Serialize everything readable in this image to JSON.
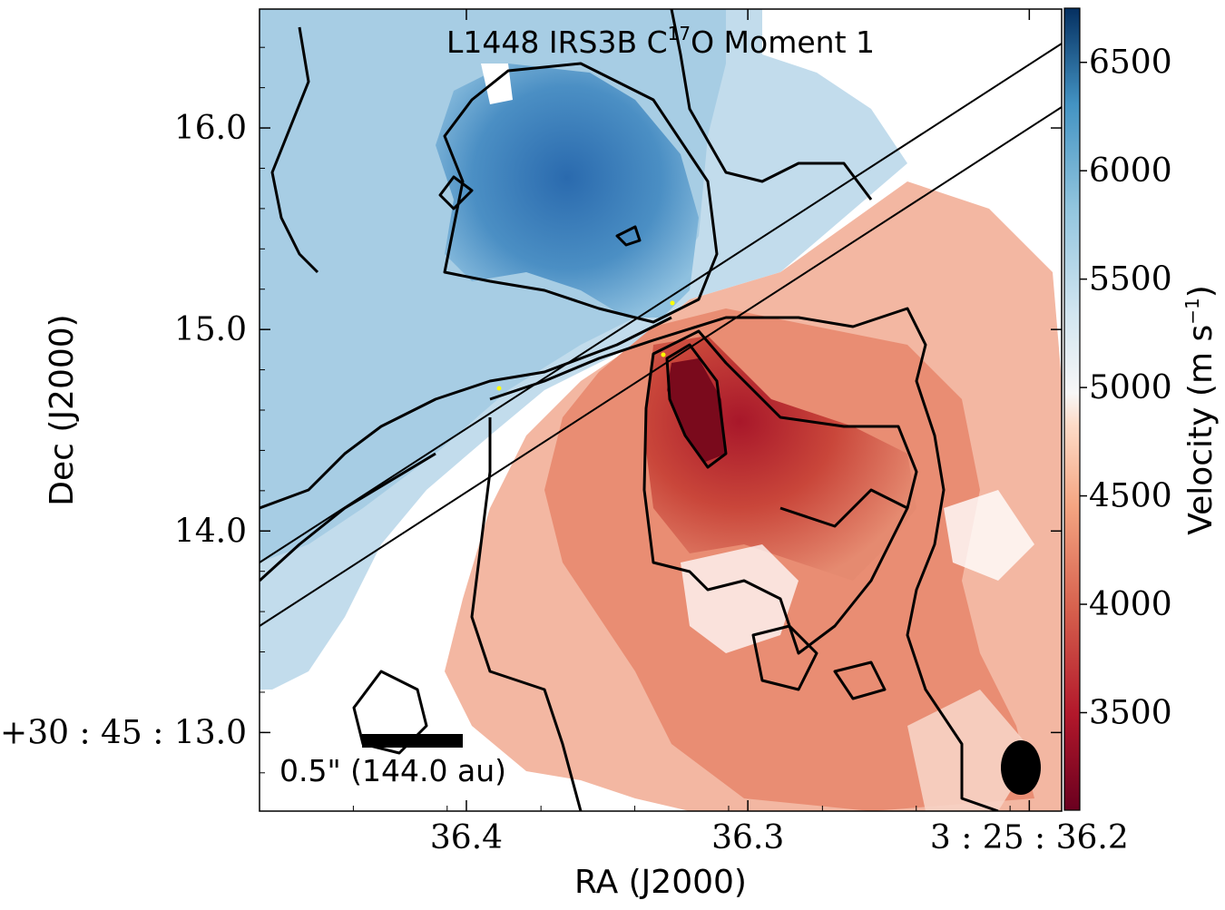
{
  "chart_data": {
    "type": "heatmap",
    "title": "L1448 IRS3B C",
    "title_sup": "17",
    "title_end": "O Moment 1",
    "xlabel": "RA (J2000)",
    "ylabel": "Dec (J2000)",
    "x_ticks": [
      {
        "value": 36.4,
        "label": "36.4"
      },
      {
        "value": 36.3,
        "label": "36.3"
      },
      {
        "value": 36.2,
        "label": "3 : 25 : 36.2"
      }
    ],
    "y_ticks": [
      {
        "value": 13.0,
        "label": "+30 : 45 : 13.0"
      },
      {
        "value": 14.0,
        "label": "14.0"
      },
      {
        "value": 15.0,
        "label": "15.0"
      },
      {
        "value": 16.0,
        "label": "16.0"
      }
    ],
    "xlim": [
      36.4735,
      36.1885
    ],
    "ylim": [
      12.61,
      16.59
    ],
    "colorbar": {
      "label": "Velocity (m s",
      "label_sup": "−1",
      "label_end": ")",
      "colormap": "RdBu",
      "range": [
        3050,
        6750
      ],
      "ticks": [
        {
          "value": 3500,
          "label": "3500"
        },
        {
          "value": 4000,
          "label": "4000"
        },
        {
          "value": 4500,
          "label": "4500"
        },
        {
          "value": 5000,
          "label": "5000"
        },
        {
          "value": 5500,
          "label": "5500"
        },
        {
          "value": 6000,
          "label": "6000"
        },
        {
          "value": 6500,
          "label": "6500"
        }
      ]
    },
    "scale_bar": {
      "text": "0.5\" (144.0 au)"
    },
    "color_regions": [
      {
        "name": "blue-lobe",
        "velocity": 6000
      },
      {
        "name": "red-lobe",
        "velocity": 3300
      }
    ],
    "position_angle_lines": 2,
    "beam": "filled ellipse, lower right",
    "colors": {
      "blue_peak": "#1e5a9c",
      "red_peak": "#8b0a1f",
      "contour": "#000000",
      "marker": "#ffff00"
    }
  }
}
